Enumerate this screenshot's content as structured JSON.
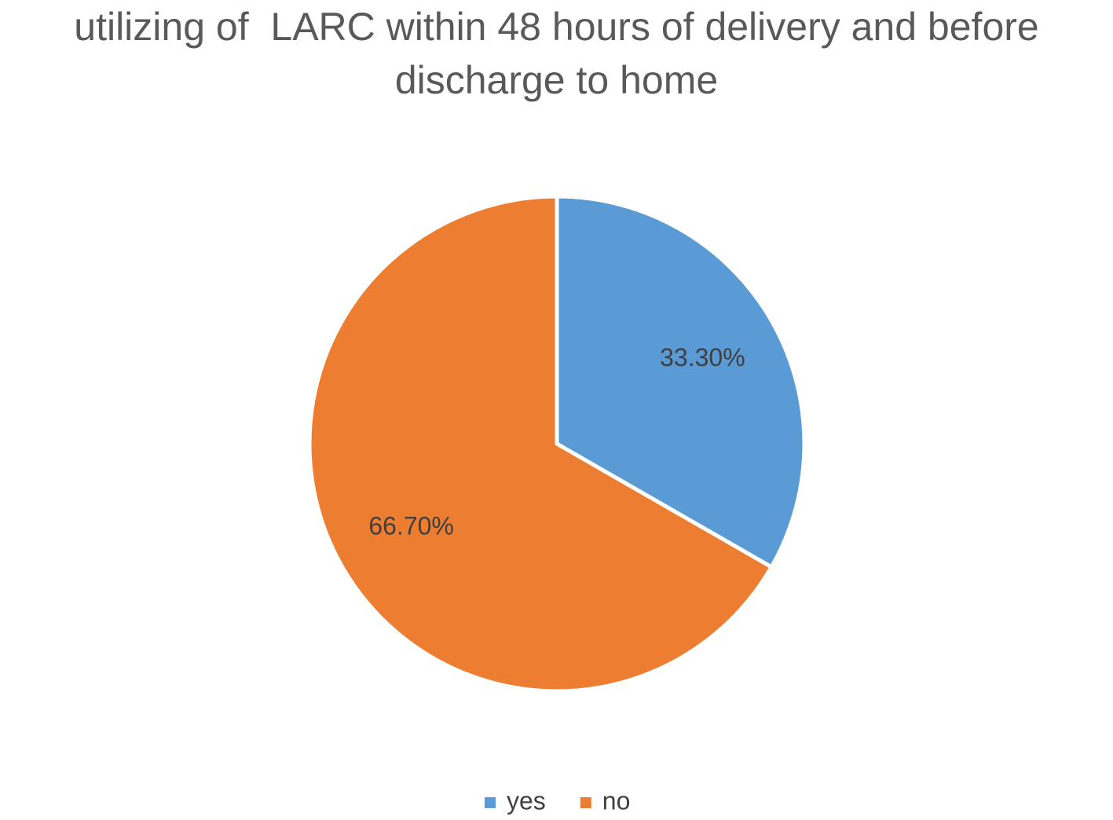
{
  "chart_data": {
    "type": "pie",
    "title": "utilizing of  LARC within 48 hours of delivery and before discharge to home",
    "categories": [
      "yes",
      "no"
    ],
    "values": [
      33.3,
      66.7
    ],
    "value_labels": [
      "33.30%",
      "66.70%"
    ],
    "colors": [
      "#5b9bd5",
      "#ed7d31"
    ],
    "legend": "bottom"
  }
}
